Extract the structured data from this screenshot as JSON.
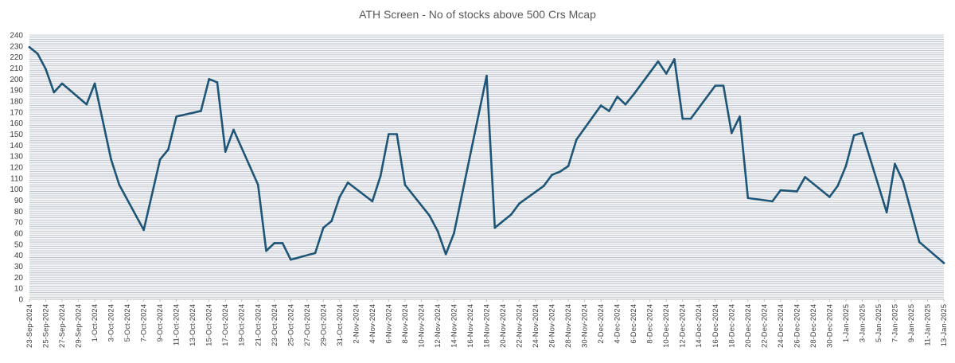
{
  "chart_data": {
    "type": "line",
    "title": "ATH Screen - No of stocks above 500 Crs Mcap",
    "xlabel": "",
    "ylabel": "",
    "ylim": [
      0,
      240
    ],
    "ytick_step": 10,
    "grid": true,
    "legend": "none",
    "colors": {
      "line": "#1f5577",
      "grid": "#b4bcc4",
      "major_grid": "#cfd4d9",
      "plot_bg": "#f4f5f6",
      "axis_text": "#404040"
    },
    "x_start": "2024-09-23",
    "x_end": "2025-01-13",
    "x_tick_labels": [
      "23-Sep-2024",
      "25-Sep-2024",
      "27-Sep-2024",
      "29-Sep-2024",
      "1-Oct-2024",
      "3-Oct-2024",
      "5-Oct-2024",
      "7-Oct-2024",
      "9-Oct-2024",
      "11-Oct-2024",
      "13-Oct-2024",
      "15-Oct-2024",
      "17-Oct-2024",
      "19-Oct-2024",
      "21-Oct-2024",
      "23-Oct-2024",
      "25-Oct-2024",
      "27-Oct-2024",
      "29-Oct-2024",
      "31-Oct-2024",
      "2-Nov-2024",
      "4-Nov-2024",
      "6-Nov-2024",
      "8-Nov-2024",
      "10-Nov-2024",
      "12-Nov-2024",
      "14-Nov-2024",
      "16-Nov-2024",
      "18-Nov-2024",
      "20-Nov-2024",
      "22-Nov-2024",
      "24-Nov-2024",
      "26-Nov-2024",
      "28-Nov-2024",
      "30-Nov-2024",
      "2-Dec-2024",
      "4-Dec-2024",
      "6-Dec-2024",
      "8-Dec-2024",
      "10-Dec-2024",
      "12-Dec-2024",
      "14-Dec-2024",
      "16-Dec-2024",
      "18-Dec-2024",
      "20-Dec-2024",
      "22-Dec-2024",
      "24-Dec-2024",
      "26-Dec-2024",
      "28-Dec-2024",
      "30-Dec-2024",
      "1-Jan-2025",
      "3-Jan-2025",
      "5-Jan-2025",
      "7-Jan-2025",
      "9-Jan-2025",
      "11-Jan-2025",
      "13-Jan-2025"
    ],
    "series": [
      {
        "points": [
          [
            "2024-09-23",
            229
          ],
          [
            "2024-09-24",
            223
          ],
          [
            "2024-09-25",
            209
          ],
          [
            "2024-09-26",
            188
          ],
          [
            "2024-09-27",
            196
          ],
          [
            "2024-09-30",
            177
          ],
          [
            "2024-10-01",
            196
          ],
          [
            "2024-10-03",
            127
          ],
          [
            "2024-10-04",
            104
          ],
          [
            "2024-10-07",
            63
          ],
          [
            "2024-10-09",
            127
          ],
          [
            "2024-10-10",
            136
          ],
          [
            "2024-10-11",
            166
          ],
          [
            "2024-10-14",
            171
          ],
          [
            "2024-10-15",
            200
          ],
          [
            "2024-10-16",
            197
          ],
          [
            "2024-10-17",
            134
          ],
          [
            "2024-10-18",
            154
          ],
          [
            "2024-10-21",
            104
          ],
          [
            "2024-10-22",
            44
          ],
          [
            "2024-10-23",
            51
          ],
          [
            "2024-10-24",
            51
          ],
          [
            "2024-10-25",
            36
          ],
          [
            "2024-10-28",
            42
          ],
          [
            "2024-10-29",
            65
          ],
          [
            "2024-10-30",
            71
          ],
          [
            "2024-10-31",
            93
          ],
          [
            "2024-11-01",
            106
          ],
          [
            "2024-11-04",
            89
          ],
          [
            "2024-11-05",
            112
          ],
          [
            "2024-11-06",
            150
          ],
          [
            "2024-11-07",
            150
          ],
          [
            "2024-11-08",
            104
          ],
          [
            "2024-11-11",
            76
          ],
          [
            "2024-11-12",
            62
          ],
          [
            "2024-11-13",
            41
          ],
          [
            "2024-11-14",
            60
          ],
          [
            "2024-11-18",
            203
          ],
          [
            "2024-11-19",
            65
          ],
          [
            "2024-11-21",
            77
          ],
          [
            "2024-11-22",
            87
          ],
          [
            "2024-11-25",
            103
          ],
          [
            "2024-11-26",
            113
          ],
          [
            "2024-11-27",
            116
          ],
          [
            "2024-11-28",
            121
          ],
          [
            "2024-11-29",
            145
          ],
          [
            "2024-12-02",
            176
          ],
          [
            "2024-12-03",
            171
          ],
          [
            "2024-12-04",
            184
          ],
          [
            "2024-12-05",
            177
          ],
          [
            "2024-12-06",
            186
          ],
          [
            "2024-12-09",
            216
          ],
          [
            "2024-12-10",
            205
          ],
          [
            "2024-12-11",
            218
          ],
          [
            "2024-12-12",
            164
          ],
          [
            "2024-12-13",
            164
          ],
          [
            "2024-12-16",
            194
          ],
          [
            "2024-12-17",
            194
          ],
          [
            "2024-12-18",
            151
          ],
          [
            "2024-12-19",
            166
          ],
          [
            "2024-12-20",
            92
          ],
          [
            "2024-12-23",
            89
          ],
          [
            "2024-12-24",
            99
          ],
          [
            "2024-12-26",
            98
          ],
          [
            "2024-12-27",
            111
          ],
          [
            "2024-12-30",
            93
          ],
          [
            "2024-12-31",
            103
          ],
          [
            "2025-01-01",
            121
          ],
          [
            "2025-01-02",
            149
          ],
          [
            "2025-01-03",
            151
          ],
          [
            "2025-01-06",
            79
          ],
          [
            "2025-01-07",
            123
          ],
          [
            "2025-01-08",
            107
          ],
          [
            "2025-01-10",
            52
          ],
          [
            "2025-01-13",
            33
          ]
        ]
      }
    ]
  }
}
